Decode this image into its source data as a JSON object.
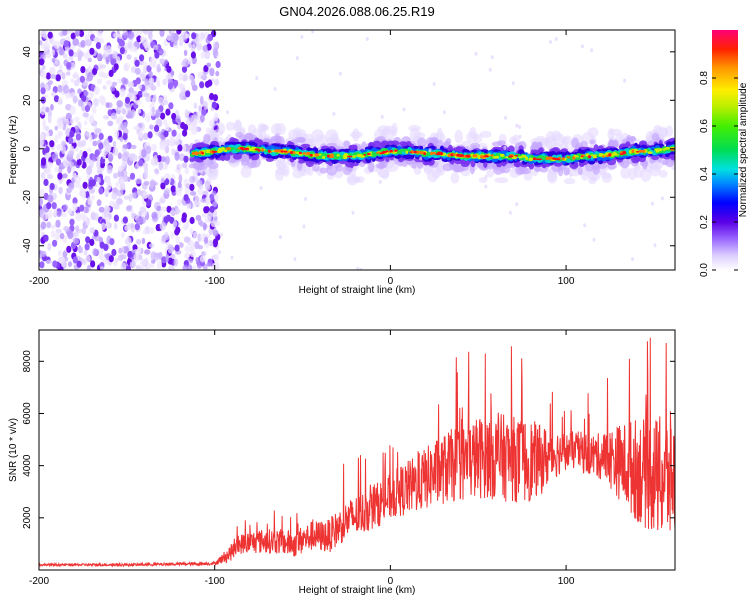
{
  "title": "GN04.2026.088.06.25.R19",
  "chart_data": [
    {
      "type": "heatmap",
      "xlabel": "Height of straight line (km)",
      "ylabel": "Frequency (Hz)",
      "xlim": [
        -200,
        162
      ],
      "ylim": [
        -50,
        49
      ],
      "xticks": [
        -200,
        -100,
        0,
        100
      ],
      "xtick_labels": [
        "-200",
        "-100",
        "0",
        "100"
      ],
      "yticks": [
        -40,
        -20,
        0,
        20,
        40
      ],
      "ytick_labels": [
        "-40",
        "-20",
        "0",
        "20",
        "40"
      ],
      "colorbar": {
        "label": "Normalized spectral amplitude",
        "range": [
          0,
          1
        ],
        "ticks": [
          0.0,
          0.2,
          0.4,
          0.6,
          0.8
        ],
        "tick_labels": [
          "0.0",
          "0.2",
          "0.4",
          "0.6",
          "0.8"
        ]
      },
      "noise_region_x": [
        -200,
        -98
      ],
      "signal_start_x": -113,
      "ridge": {
        "x": [
          -112,
          -100,
          -90,
          -80,
          -70,
          -60,
          -50,
          -40,
          -30,
          -20,
          -10,
          0,
          10,
          20,
          30,
          40,
          50,
          60,
          70,
          80,
          90,
          100,
          110,
          120,
          130,
          140,
          150,
          160
        ],
        "y": [
          -2,
          -1,
          0,
          0,
          -1,
          -1,
          -2,
          -3,
          -3,
          -3,
          -2,
          -1,
          -1,
          -2,
          -2,
          -3,
          -3,
          -3,
          -3,
          -4,
          -4,
          -4,
          -3,
          -3,
          -2,
          -1,
          -1,
          0
        ]
      }
    },
    {
      "type": "line",
      "xlabel": "Height of straight line (km)",
      "ylabel": "SNR (10 * v/v)",
      "xlim": [
        -200,
        162
      ],
      "ylim": [
        0,
        9200
      ],
      "xticks": [
        -200,
        -100,
        0,
        100
      ],
      "xtick_labels": [
        "-200",
        "-100",
        "0",
        "100"
      ],
      "yticks": [
        2000,
        4000,
        6000,
        8000
      ],
      "ytick_labels": [
        "2000",
        "4000",
        "6000",
        "8000"
      ],
      "color": "#ee3333",
      "envelope": {
        "x": [
          -200,
          -150,
          -100,
          -92,
          -85,
          -75,
          -65,
          -55,
          -45,
          -35,
          -25,
          -15,
          -5,
          5,
          15,
          25,
          35,
          45,
          55,
          65,
          75,
          85,
          95,
          105,
          115,
          125,
          135,
          145,
          155,
          162
        ],
        "y": [
          200,
          200,
          250,
          600,
          1000,
          1100,
          1100,
          1000,
          1300,
          1300,
          1900,
          2200,
          2600,
          3000,
          3300,
          3700,
          4000,
          4200,
          4400,
          4300,
          4200,
          4200,
          4500,
          4600,
          4400,
          4300,
          4000,
          3700,
          3500,
          3600
        ]
      },
      "noise_amplitude": {
        "x": [
          -200,
          -100,
          -92,
          -80,
          -60,
          -40,
          -20,
          0,
          20,
          40,
          60,
          80,
          100,
          120,
          140,
          162
        ],
        "y": [
          40,
          60,
          300,
          450,
          500,
          600,
          800,
          900,
          1200,
          1500,
          1700,
          1600,
          700,
          900,
          2000,
          2600
        ]
      },
      "peaks": [
        {
          "x": 54,
          "y": 8300
        },
        {
          "x": 75,
          "y": 7400
        },
        {
          "x": 136,
          "y": 8100
        },
        {
          "x": 148,
          "y": 8900
        },
        {
          "x": 157,
          "y": 8700
        }
      ]
    }
  ]
}
